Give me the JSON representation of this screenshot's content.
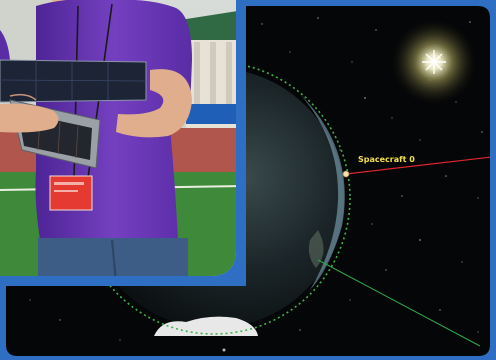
{
  "simulation": {
    "spacecraft_label": "Spacecraft 0"
  },
  "colors": {
    "frame": "#2e6fc4",
    "space": "#050607",
    "orbit": "#3fb24a",
    "sun_vector": "#e0262e",
    "second_vector": "#2fa84a",
    "label": "#f2e14a",
    "shirt": "#6a34b2",
    "field": "#3f8a3a",
    "track": "#b0564c"
  }
}
